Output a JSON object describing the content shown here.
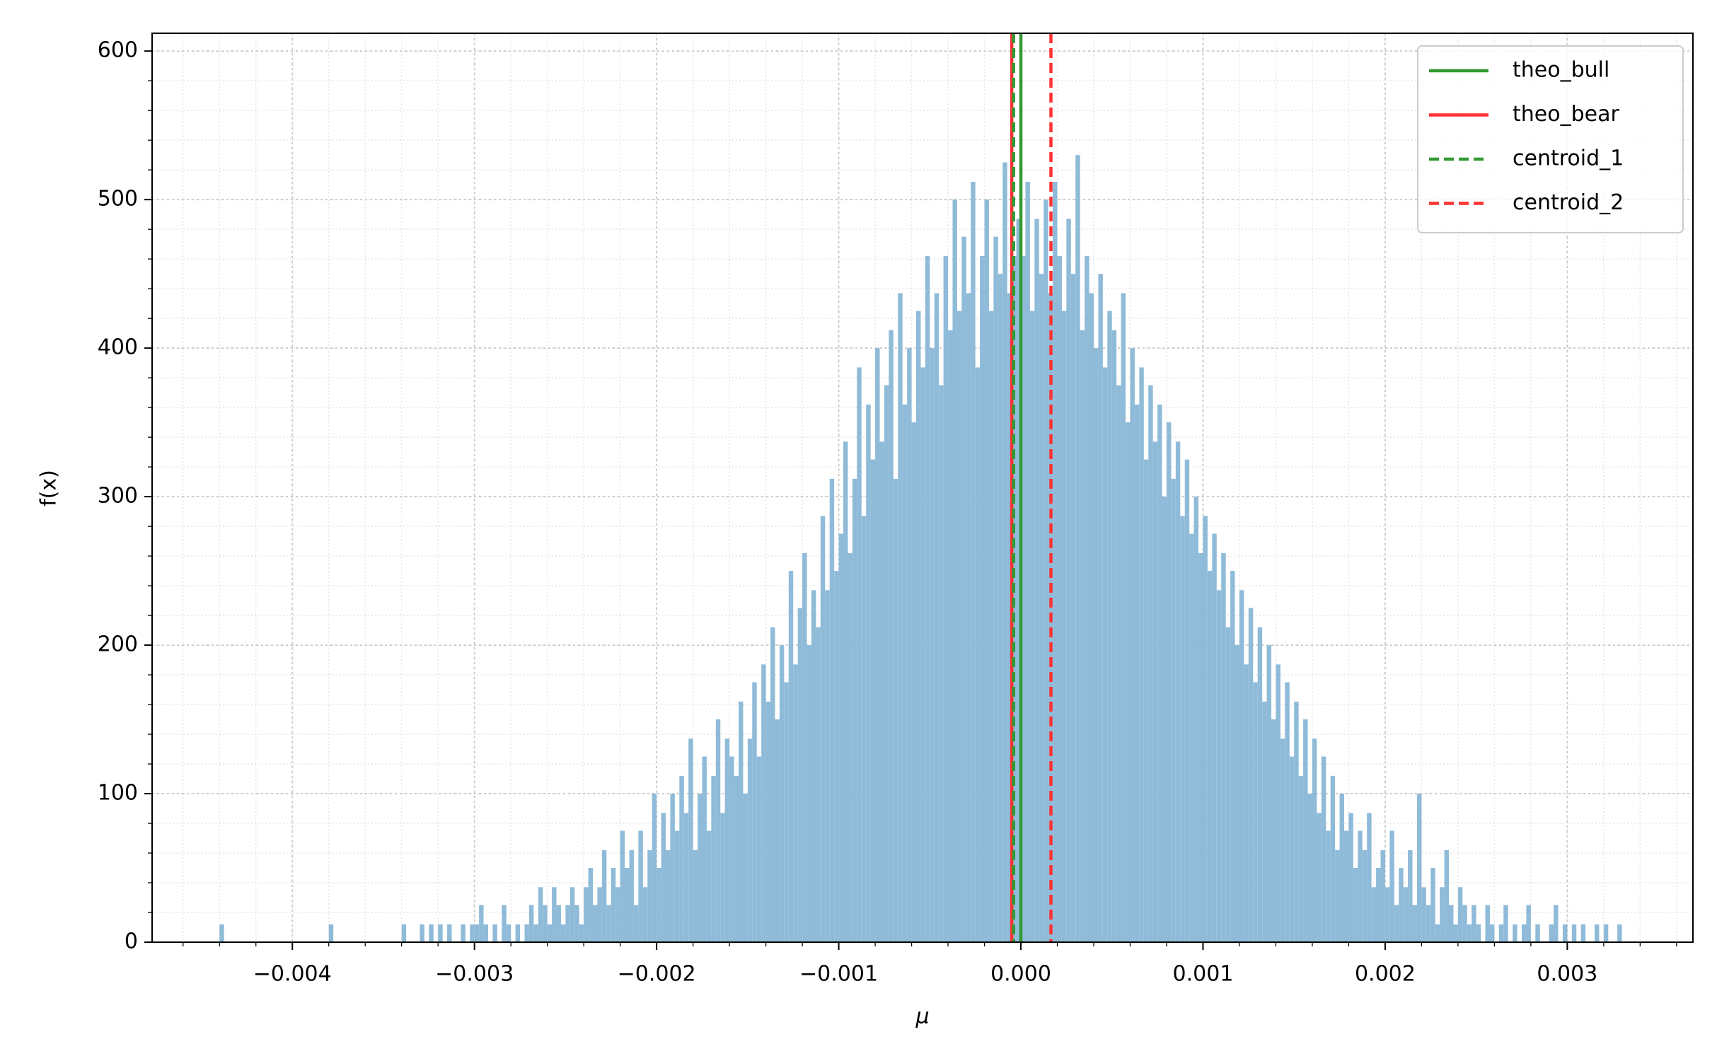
{
  "chart_data": {
    "type": "histogram",
    "xlabel": "μ",
    "ylabel": "f(x)",
    "color": "#8fbbd9",
    "xlim": [
      -0.00477,
      0.00369
    ],
    "ylim": [
      0,
      612
    ],
    "xticks": [
      {
        "value": -0.004,
        "label": "−0.004"
      },
      {
        "value": -0.003,
        "label": "−0.003"
      },
      {
        "value": -0.002,
        "label": "−0.002"
      },
      {
        "value": -0.001,
        "label": "−0.001"
      },
      {
        "value": 0,
        "label": "0.000"
      },
      0.001,
      0.002,
      0.003
    ],
    "yticks": [
      0,
      100,
      200,
      300,
      400,
      500,
      600
    ],
    "xminorticks": [
      -0.0046,
      -0.0044,
      -0.0042,
      -0.004,
      -0.0038,
      -0.0036,
      -0.0034,
      -0.0032,
      -0.003,
      -0.0028,
      -0.0026,
      -0.0024,
      -0.0022,
      -0.002,
      -0.0018,
      -0.0016,
      -0.0014,
      -0.0012,
      -0.001,
      -0.0008,
      -0.0006,
      -0.0004,
      -0.0002,
      0,
      0.0002,
      0.0004,
      0.0006,
      0.0008,
      0.001,
      0.0012,
      0.0014,
      0.0016,
      0.0018,
      0.002,
      0.0022,
      0.0024,
      0.0026,
      0.0028,
      0.003,
      0.0032,
      0.0034,
      0.0036
    ],
    "yminorticks": [
      0,
      20,
      40,
      60,
      80,
      100,
      120,
      140,
      160,
      180,
      200,
      220,
      240,
      260,
      280,
      300,
      320,
      340,
      360,
      380,
      400,
      420,
      440,
      460,
      480,
      500,
      520,
      540,
      560,
      580,
      600
    ],
    "grid": true,
    "minor_grid": true,
    "legend": "upper right",
    "bins": [
      -0.0044,
      -0.004375,
      -0.00435,
      -0.004325,
      -0.0043,
      -0.004275,
      -0.00425,
      -0.004225,
      -0.0042,
      -0.004175,
      -0.00415,
      -0.004125,
      -0.0041,
      -0.004075,
      -0.00405,
      -0.004025,
      -0.004,
      -0.003975,
      -0.00395,
      -0.003925,
      -0.0039,
      -0.003875,
      -0.00385,
      -0.003825,
      -0.0038,
      -0.003775,
      -0.00375,
      -0.003725,
      -0.0037,
      -0.003675,
      -0.00365,
      -0.003625,
      -0.0036,
      -0.003575,
      -0.00355,
      -0.003525,
      -0.0035,
      -0.003475,
      -0.00345,
      -0.003425,
      -0.0034,
      -0.003375,
      -0.00335,
      -0.003325,
      -0.0033,
      -0.003275,
      -0.00325,
      -0.003225,
      -0.0032,
      -0.003175,
      -0.00315,
      -0.003125,
      -0.0031,
      -0.003075,
      -0.00305,
      -0.003025,
      -0.003,
      -0.002975,
      -0.00295,
      -0.002925,
      -0.0029,
      -0.002875,
      -0.00285,
      -0.002825,
      -0.0028,
      -0.002775,
      -0.00275,
      -0.002725,
      -0.0027,
      -0.002675,
      -0.00265,
      -0.002625,
      -0.0026,
      -0.002575,
      -0.00255,
      -0.002525,
      -0.0025,
      -0.002475,
      -0.00245,
      -0.002425,
      -0.0024,
      -0.002375,
      -0.00235,
      -0.002325,
      -0.0023,
      -0.002275,
      -0.00225,
      -0.002225,
      -0.0022,
      -0.002175,
      -0.00215,
      -0.002125,
      -0.0021,
      -0.002075,
      -0.00205,
      -0.002025,
      -0.002,
      -0.001975,
      -0.00195,
      -0.001925,
      -0.0019,
      -0.001875,
      -0.00185,
      -0.001825,
      -0.0018,
      -0.001775,
      -0.00175,
      -0.001725,
      -0.0017,
      -0.001675,
      -0.00165,
      -0.001625,
      -0.0016,
      -0.001575,
      -0.00155,
      -0.001525,
      -0.0015,
      -0.001475,
      -0.00145,
      -0.001425,
      -0.0014,
      -0.001375,
      -0.00135,
      -0.001325,
      -0.0013,
      -0.001275,
      -0.00125,
      -0.001225,
      -0.0012,
      -0.001175,
      -0.00115,
      -0.001125,
      -0.0011,
      -0.001075,
      -0.00105,
      -0.001025,
      -0.001,
      -0.000975,
      -0.00095,
      -0.000925,
      -0.0009,
      -0.000875,
      -0.00085,
      -0.000825,
      -0.0008,
      -0.000775,
      -0.00075,
      -0.000725,
      -0.0007,
      -0.000675,
      -0.00065,
      -0.000625,
      -0.0006,
      -0.000575,
      -0.00055,
      -0.000525,
      -0.0005,
      -0.000475,
      -0.00045,
      -0.000425,
      -0.0004,
      -0.000375,
      -0.00035,
      -0.000325,
      -0.0003,
      -0.000275,
      -0.00025,
      -0.000225,
      -0.0002,
      -0.000175,
      -0.00015,
      -0.000125,
      -0.0001,
      -7.5e-05,
      -5e-05,
      -2.5e-05,
      0,
      2.5e-05,
      5e-05,
      7.5e-05,
      0.0001,
      0.000125,
      0.00015,
      0.000175,
      0.0002,
      0.000225,
      0.00025,
      0.000275,
      0.0003,
      0.000325,
      0.00035,
      0.000375,
      0.0004,
      0.000425,
      0.00045,
      0.000475,
      0.0005,
      0.000525,
      0.00055,
      0.000575,
      0.0006,
      0.000625,
      0.00065,
      0.000675,
      0.0007,
      0.000725,
      0.00075,
      0.000775,
      0.0008,
      0.000825,
      0.00085,
      0.000875,
      0.0009,
      0.000925,
      0.00095,
      0.000975,
      0.001,
      0.001025,
      0.00105,
      0.001075,
      0.0011,
      0.001125,
      0.00115,
      0.001175,
      0.0012,
      0.001225,
      0.00125,
      0.001275,
      0.0013,
      0.001325,
      0.00135,
      0.001375,
      0.0014,
      0.001425,
      0.00145,
      0.001475,
      0.0015,
      0.001525,
      0.00155,
      0.001575,
      0.0016,
      0.001625,
      0.00165,
      0.001675,
      0.0017,
      0.001725,
      0.00175,
      0.001775,
      0.0018,
      0.001825,
      0.00185,
      0.001875,
      0.0019,
      0.001925,
      0.00195,
      0.001975,
      0.002,
      0.002025,
      0.00205,
      0.002075,
      0.0021,
      0.002125,
      0.00215,
      0.002175,
      0.0022,
      0.002225,
      0.00225,
      0.002275,
      0.0023,
      0.002325,
      0.00235,
      0.002375,
      0.0024,
      0.002425,
      0.00245,
      0.002475,
      0.0025,
      0.002525,
      0.00255,
      0.002575,
      0.0026,
      0.002625,
      0.00265,
      0.002675,
      0.0027,
      0.002725,
      0.00275,
      0.002775,
      0.0028,
      0.002825,
      0.00285,
      0.002875,
      0.0029,
      0.002925,
      0.00295,
      0.002975,
      0.003,
      0.003025,
      0.00305,
      0.003075,
      0.0031,
      0.003125,
      0.00315,
      0.003175,
      0.0032,
      0.003225,
      0.00325,
      0.003275,
      0.0033
    ],
    "values": [
      12,
      0,
      0,
      0,
      0,
      0,
      0,
      0,
      0,
      0,
      0,
      0,
      0,
      0,
      0,
      0,
      0,
      0,
      0,
      0,
      0,
      0,
      0,
      0,
      12,
      0,
      0,
      0,
      0,
      0,
      0,
      0,
      0,
      0,
      0,
      0,
      0,
      0,
      0,
      0,
      12,
      0,
      0,
      0,
      12,
      0,
      12,
      0,
      12,
      0,
      12,
      0,
      0,
      12,
      0,
      12,
      12,
      25,
      12,
      0,
      12,
      0,
      25,
      12,
      0,
      12,
      0,
      12,
      25,
      12,
      37,
      25,
      12,
      37,
      25,
      12,
      25,
      37,
      25,
      12,
      37,
      50,
      25,
      37,
      62,
      25,
      50,
      37,
      75,
      50,
      62,
      25,
      75,
      37,
      62,
      100,
      50,
      87,
      62,
      100,
      75,
      112,
      87,
      137,
      62,
      100,
      125,
      75,
      112,
      150,
      87,
      137,
      125,
      112,
      162,
      100,
      137,
      175,
      125,
      187,
      162,
      212,
      150,
      200,
      175,
      250,
      187,
      225,
      262,
      200,
      237,
      212,
      287,
      237,
      312,
      250,
      275,
      337,
      262,
      312,
      387,
      287,
      362,
      325,
      400,
      337,
      375,
      412,
      312,
      437,
      362,
      400,
      350,
      425,
      387,
      462,
      400,
      437,
      375,
      462,
      412,
      500,
      425,
      475,
      437,
      512,
      387,
      462,
      500,
      425,
      475,
      450,
      525,
      437,
      462,
      487,
      462,
      512,
      425,
      487,
      450,
      500,
      437,
      512,
      462,
      425,
      487,
      450,
      530,
      412,
      462,
      437,
      400,
      450,
      387,
      425,
      412,
      375,
      437,
      350,
      400,
      362,
      387,
      325,
      375,
      337,
      362,
      300,
      350,
      312,
      337,
      287,
      325,
      275,
      300,
      262,
      287,
      250,
      275,
      237,
      262,
      212,
      250,
      200,
      237,
      187,
      225,
      175,
      212,
      162,
      200,
      150,
      187,
      137,
      175,
      125,
      162,
      112,
      150,
      100,
      137,
      87,
      125,
      75,
      112,
      62,
      100,
      75,
      87,
      50,
      75,
      62,
      87,
      37,
      50,
      62,
      37,
      75,
      25,
      50,
      37,
      62,
      25,
      100,
      37,
      25,
      50,
      12,
      37,
      62,
      25,
      12,
      37,
      25,
      12,
      25,
      12,
      0,
      25,
      12,
      0,
      12,
      25,
      0,
      12,
      0,
      12,
      25,
      0,
      12,
      0,
      0,
      12,
      25,
      0,
      12,
      0,
      12,
      0,
      12,
      0,
      0,
      12,
      0,
      12,
      0,
      0,
      12
    ],
    "vlines": [
      {
        "name": "theo_bull",
        "color": "#339933",
        "style": "solid",
        "value": 0
      },
      {
        "name": "theo_bear",
        "color": "#ff3333",
        "style": "solid",
        "value": -5e-05
      },
      {
        "name": "centroid_1",
        "color": "#339933",
        "style": "dashed",
        "value": -4e-05
      },
      {
        "name": "centroid_2",
        "color": "#ff3333",
        "style": "dashed",
        "value": 0.000165
      }
    ]
  }
}
